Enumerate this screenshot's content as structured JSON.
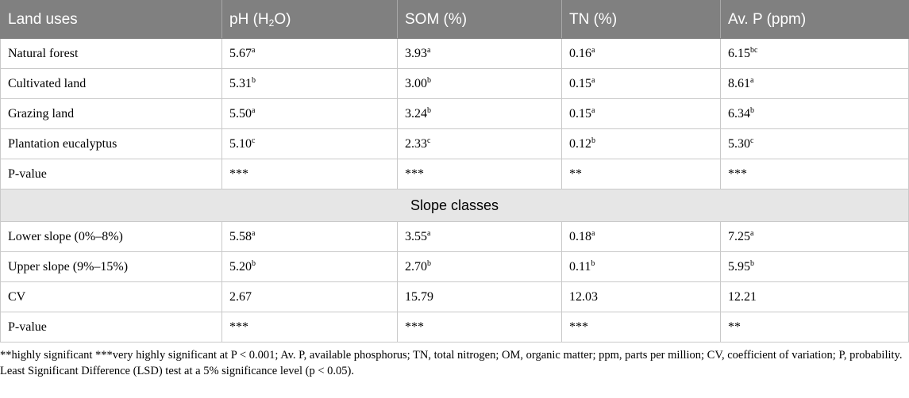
{
  "headers": [
    "Land uses",
    "pH (H",
    "2",
    "O)",
    "SOM (%)",
    "TN (%)",
    "Av. P (ppm)"
  ],
  "rows_land": [
    {
      "label": "Natural forest",
      "cells": [
        [
          "5.67",
          "a"
        ],
        [
          "3.93",
          "a"
        ],
        [
          "0.16",
          "a"
        ],
        [
          "6.15",
          "bc"
        ]
      ]
    },
    {
      "label": "Cultivated land",
      "cells": [
        [
          "5.31",
          "b"
        ],
        [
          "3.00",
          "b"
        ],
        [
          "0.15",
          "a"
        ],
        [
          "8.61",
          "a"
        ]
      ]
    },
    {
      "label": "Grazing land",
      "cells": [
        [
          "5.50",
          "a"
        ],
        [
          "3.24",
          "b"
        ],
        [
          "0.15",
          "a"
        ],
        [
          "6.34",
          "b"
        ]
      ]
    },
    {
      "label": "Plantation eucalyptus",
      "cells": [
        [
          "5.10",
          "c"
        ],
        [
          "2.33",
          "c"
        ],
        [
          "0.12",
          "b"
        ],
        [
          "5.30",
          "c"
        ]
      ]
    },
    {
      "label": "P-value",
      "cells": [
        [
          "***",
          ""
        ],
        [
          "***",
          ""
        ],
        [
          "**",
          ""
        ],
        [
          "***",
          ""
        ]
      ]
    }
  ],
  "section_label": "Slope classes",
  "rows_slope": [
    {
      "label": "Lower slope (0%–8%)",
      "cells": [
        [
          "5.58",
          "a"
        ],
        [
          "3.55",
          "a"
        ],
        [
          "0.18",
          "a"
        ],
        [
          "7.25",
          "a"
        ]
      ]
    },
    {
      "label": "Upper slope (9%–15%)",
      "cells": [
        [
          "5.20",
          "b"
        ],
        [
          "2.70",
          "b"
        ],
        [
          "0.11",
          "b"
        ],
        [
          "5.95",
          "b"
        ]
      ]
    },
    {
      "label": "CV",
      "cells": [
        [
          "2.67",
          ""
        ],
        [
          "15.79",
          ""
        ],
        [
          "12.03",
          ""
        ],
        [
          "12.21",
          ""
        ]
      ]
    },
    {
      "label": "P-value",
      "cells": [
        [
          "***",
          ""
        ],
        [
          "***",
          ""
        ],
        [
          "***",
          ""
        ],
        [
          "**",
          ""
        ]
      ]
    }
  ],
  "footnote_1": "**highly significant ***very highly significant at P < 0.001; Av. P, available phosphorus; TN, total nitrogen; OM, organic matter; ppm, parts per million; CV, coefficient of variation; P, probability.",
  "footnote_2": "Least Significant Difference (LSD) test at a 5% significance level (p < 0.05)."
}
